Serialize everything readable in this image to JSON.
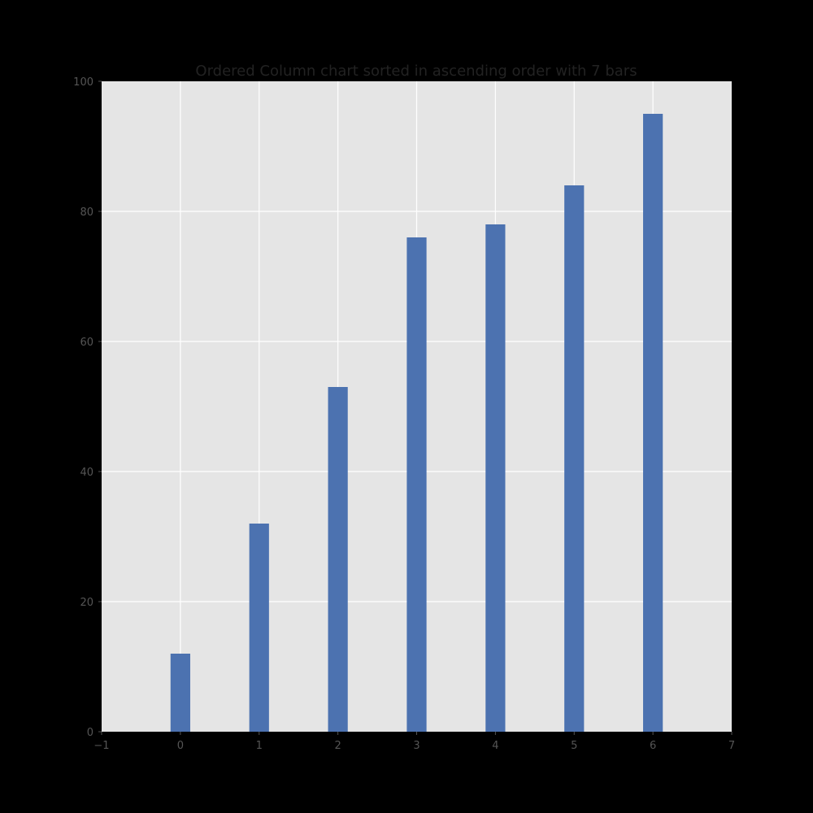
{
  "chart_data": {
    "type": "bar",
    "title": "Ordered Column chart sorted in ascending order with 7 bars",
    "xlabel": "",
    "ylabel": "",
    "x": [
      0,
      1,
      2,
      3,
      4,
      5,
      6
    ],
    "values": [
      12,
      32,
      53,
      76,
      78,
      84,
      95
    ],
    "xlim": [
      -1,
      7
    ],
    "ylim": [
      0,
      100
    ],
    "x_ticks": [
      -1,
      0,
      1,
      2,
      3,
      4,
      5,
      6,
      7
    ],
    "x_tick_labels": [
      "−1",
      "0",
      "1",
      "2",
      "3",
      "4",
      "5",
      "6",
      "7"
    ],
    "y_ticks": [
      0,
      20,
      40,
      60,
      80,
      100
    ],
    "y_tick_labels": [
      "0",
      "20",
      "40",
      "60",
      "80",
      "100"
    ],
    "bar_width": 0.25,
    "grid": true,
    "legend": "none",
    "colors": {
      "bar": "#4c72b0",
      "plot_background": "#e5e5e5",
      "grid": "#ffffff",
      "figure_background": "#000000",
      "tick_text": "#555555",
      "title_text": "#222222"
    }
  }
}
